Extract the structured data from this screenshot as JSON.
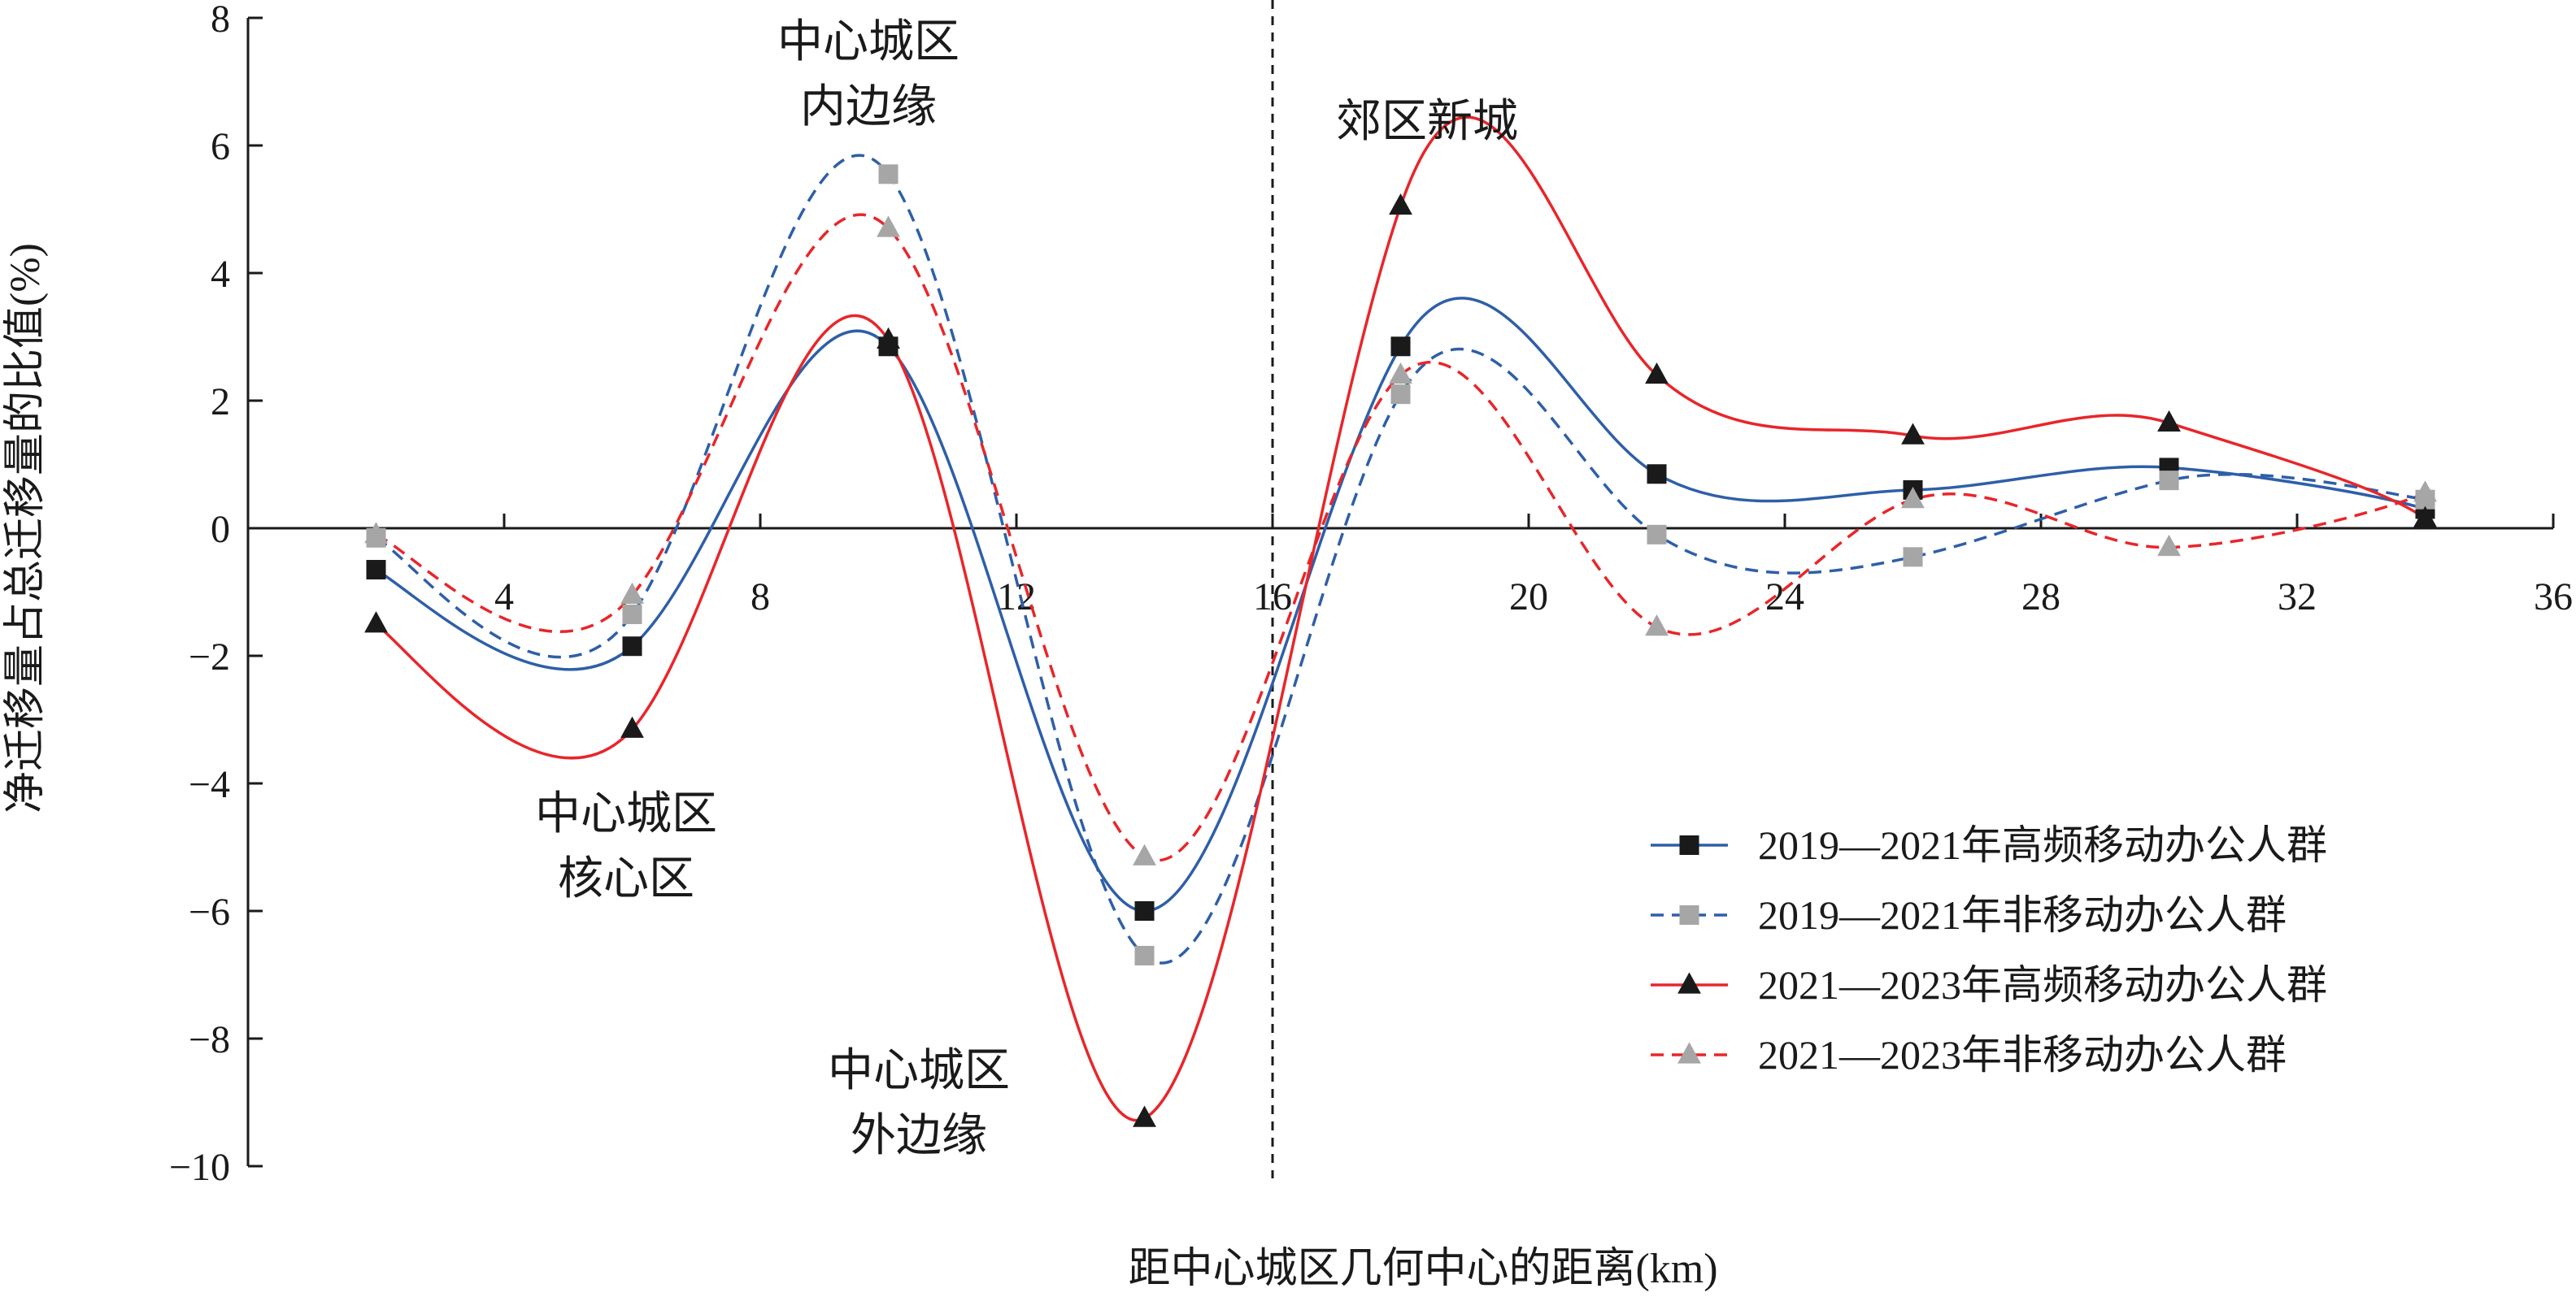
{
  "chart_data": {
    "type": "line",
    "title": "",
    "xlabel": "距中心城区几何中心的距离(km)",
    "ylabel": "净迁移量占总迁移量的比值(%)",
    "xlim": [
      0,
      36
    ],
    "ylim": [
      -10,
      8
    ],
    "x_ticks": [
      "4",
      "8",
      "12",
      "16",
      "20",
      "24",
      "28",
      "32",
      "36"
    ],
    "y_ticks": [
      "8",
      "6",
      "4",
      "2",
      "0",
      "−2",
      "−4",
      "−6",
      "−8",
      "−10"
    ],
    "x_tick_values": [
      4,
      8,
      12,
      16,
      20,
      24,
      28,
      32,
      36
    ],
    "y_tick_values": [
      8,
      6,
      4,
      2,
      0,
      -2,
      -4,
      -6,
      -8,
      -10
    ],
    "divider_x": 16,
    "grid": false,
    "legend_position": "bottom-right",
    "x": [
      2,
      6,
      10,
      14,
      18,
      22,
      26,
      30,
      34
    ],
    "series": [
      {
        "name": "2019—2021年高频移动办公人群",
        "values": [
          -0.65,
          -1.85,
          2.85,
          -6.0,
          2.85,
          0.85,
          0.6,
          0.95,
          0.3
        ],
        "color": "#2e5fa8",
        "dash": false,
        "marker": "square",
        "marker_color": "#1a1a1a"
      },
      {
        "name": "2019—2021年非移动办公人群",
        "values": [
          -0.15,
          -1.35,
          5.55,
          -6.7,
          2.1,
          -0.1,
          -0.45,
          0.75,
          0.45
        ],
        "color": "#2e5fa8",
        "dash": true,
        "marker": "square",
        "marker_color": "#a6a6a6"
      },
      {
        "name": "2021—2023年高频移动办公人群",
        "values": [
          -1.5,
          -3.15,
          2.95,
          -9.25,
          5.05,
          2.4,
          1.45,
          1.65,
          0.15
        ],
        "color": "#e8262a",
        "dash": false,
        "marker": "triangle",
        "marker_color": "#1a1a1a"
      },
      {
        "name": "2021—2023年非移动办公人群",
        "values": [
          -0.1,
          -1.05,
          4.7,
          -5.15,
          2.4,
          -1.55,
          0.45,
          -0.3,
          0.55
        ],
        "color": "#e8262a",
        "dash": true,
        "marker": "triangle",
        "marker_color": "#a6a6a6"
      }
    ],
    "annotations": [
      {
        "id": "inner",
        "lines": [
          "中心城区",
          "内边缘"
        ]
      },
      {
        "id": "suburb",
        "lines": [
          "郊区新城"
        ]
      },
      {
        "id": "core",
        "lines": [
          "中心城区",
          "核心区"
        ]
      },
      {
        "id": "outer",
        "lines": [
          "中心城区",
          "外边缘"
        ]
      }
    ]
  }
}
